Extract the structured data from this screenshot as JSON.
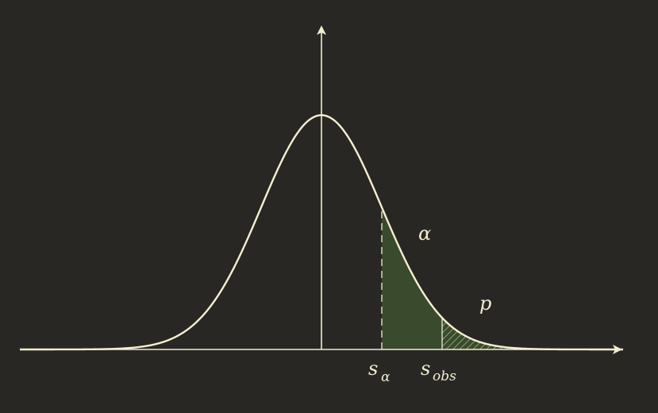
{
  "figure": {
    "annotations": {
      "alpha_label": "α",
      "p_label": "p",
      "s_alpha": {
        "base": "s",
        "sub": "α"
      },
      "s_obs": {
        "base": "s",
        "sub": "obs"
      }
    },
    "curve": {
      "type": "normal-density",
      "mean": 0,
      "sd": 1,
      "x_range": [
        -5,
        5
      ]
    },
    "critical_value": 1.0,
    "observed_value": 2.0,
    "colors": {
      "background": "#282723",
      "curve": "#f6efcf",
      "axes": "#f3ecd0",
      "rejection_fill": "#3a4a2d",
      "p_hatch": "#8e9f7a"
    }
  }
}
